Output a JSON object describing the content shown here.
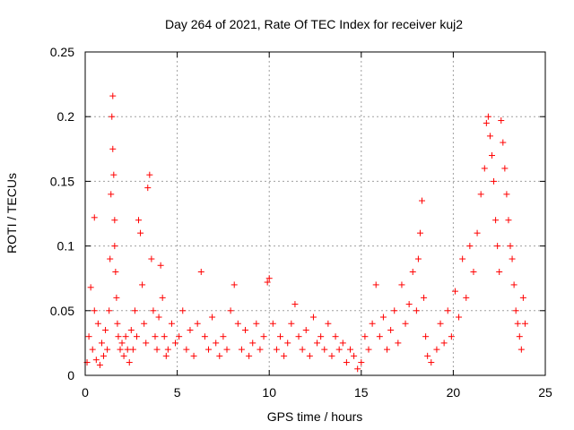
{
  "chart_data": {
    "type": "scatter",
    "title": "Day 264 of 2021, Rate Of TEC Index for receiver kuj2",
    "xlabel": "GPS time / hours",
    "ylabel": "ROTI / TECUs",
    "xlim": [
      0,
      25
    ],
    "ylim": [
      0,
      0.25
    ],
    "xticks": [
      0,
      5,
      10,
      15,
      20,
      25
    ],
    "yticks": [
      0,
      0.05,
      0.1,
      0.15,
      0.2,
      0.25
    ],
    "xtick_labels": [
      "0",
      "5",
      "10",
      "15",
      "20",
      "25"
    ],
    "ytick_labels": [
      "0",
      "0.05",
      "0.1",
      "0.15",
      "0.2",
      "0.25"
    ],
    "grid": true,
    "marker": "+",
    "series_color": "#ff0000",
    "series": [
      {
        "name": "ROTI",
        "points": [
          [
            0.1,
            0.01
          ],
          [
            0.2,
            0.03
          ],
          [
            0.3,
            0.068
          ],
          [
            0.4,
            0.02
          ],
          [
            0.5,
            0.05
          ],
          [
            0.6,
            0.012
          ],
          [
            0.7,
            0.04
          ],
          [
            0.8,
            0.008
          ],
          [
            0.5,
            0.122
          ],
          [
            0.9,
            0.025
          ],
          [
            1.0,
            0.015
          ],
          [
            1.1,
            0.035
          ],
          [
            1.2,
            0.02
          ],
          [
            1.3,
            0.05
          ],
          [
            1.35,
            0.09
          ],
          [
            1.4,
            0.14
          ],
          [
            1.45,
            0.2
          ],
          [
            1.5,
            0.216
          ],
          [
            1.5,
            0.175
          ],
          [
            1.55,
            0.155
          ],
          [
            1.6,
            0.12
          ],
          [
            1.6,
            0.1
          ],
          [
            1.65,
            0.08
          ],
          [
            1.7,
            0.06
          ],
          [
            1.75,
            0.04
          ],
          [
            1.8,
            0.03
          ],
          [
            1.9,
            0.02
          ],
          [
            2.0,
            0.025
          ],
          [
            2.1,
            0.015
          ],
          [
            2.2,
            0.03
          ],
          [
            2.3,
            0.02
          ],
          [
            2.4,
            0.01
          ],
          [
            2.5,
            0.035
          ],
          [
            2.6,
            0.02
          ],
          [
            2.7,
            0.05
          ],
          [
            2.8,
            0.03
          ],
          [
            2.9,
            0.12
          ],
          [
            3.0,
            0.11
          ],
          [
            3.1,
            0.07
          ],
          [
            3.2,
            0.04
          ],
          [
            3.3,
            0.025
          ],
          [
            3.4,
            0.145
          ],
          [
            3.5,
            0.155
          ],
          [
            3.6,
            0.09
          ],
          [
            3.7,
            0.05
          ],
          [
            3.8,
            0.03
          ],
          [
            3.9,
            0.02
          ],
          [
            4.0,
            0.045
          ],
          [
            4.1,
            0.085
          ],
          [
            4.2,
            0.06
          ],
          [
            4.3,
            0.03
          ],
          [
            4.4,
            0.015
          ],
          [
            4.5,
            0.02
          ],
          [
            4.7,
            0.04
          ],
          [
            4.9,
            0.025
          ],
          [
            5.1,
            0.03
          ],
          [
            5.3,
            0.05
          ],
          [
            5.5,
            0.02
          ],
          [
            5.7,
            0.035
          ],
          [
            5.9,
            0.015
          ],
          [
            6.1,
            0.04
          ],
          [
            6.3,
            0.08
          ],
          [
            6.5,
            0.03
          ],
          [
            6.7,
            0.02
          ],
          [
            6.9,
            0.045
          ],
          [
            7.1,
            0.025
          ],
          [
            7.3,
            0.015
          ],
          [
            7.5,
            0.03
          ],
          [
            7.7,
            0.02
          ],
          [
            7.9,
            0.05
          ],
          [
            8.1,
            0.07
          ],
          [
            8.3,
            0.04
          ],
          [
            8.5,
            0.02
          ],
          [
            8.7,
            0.035
          ],
          [
            8.9,
            0.015
          ],
          [
            9.1,
            0.025
          ],
          [
            9.3,
            0.04
          ],
          [
            9.5,
            0.02
          ],
          [
            9.7,
            0.03
          ],
          [
            9.9,
            0.072
          ],
          [
            10.0,
            0.075
          ],
          [
            10.2,
            0.04
          ],
          [
            10.4,
            0.02
          ],
          [
            10.6,
            0.03
          ],
          [
            10.8,
            0.015
          ],
          [
            11.0,
            0.025
          ],
          [
            11.2,
            0.04
          ],
          [
            11.4,
            0.055
          ],
          [
            11.6,
            0.03
          ],
          [
            11.8,
            0.02
          ],
          [
            12.0,
            0.035
          ],
          [
            12.2,
            0.015
          ],
          [
            12.4,
            0.045
          ],
          [
            12.6,
            0.025
          ],
          [
            12.8,
            0.03
          ],
          [
            13.0,
            0.02
          ],
          [
            13.2,
            0.04
          ],
          [
            13.4,
            0.015
          ],
          [
            13.6,
            0.03
          ],
          [
            13.8,
            0.02
          ],
          [
            14.0,
            0.025
          ],
          [
            14.2,
            0.01
          ],
          [
            14.4,
            0.02
          ],
          [
            14.6,
            0.015
          ],
          [
            14.8,
            0.005
          ],
          [
            15.0,
            0.01
          ],
          [
            15.2,
            0.03
          ],
          [
            15.4,
            0.02
          ],
          [
            15.6,
            0.04
          ],
          [
            15.8,
            0.07
          ],
          [
            16.0,
            0.03
          ],
          [
            16.2,
            0.045
          ],
          [
            16.4,
            0.02
          ],
          [
            16.6,
            0.035
          ],
          [
            16.8,
            0.05
          ],
          [
            17.0,
            0.025
          ],
          [
            17.2,
            0.07
          ],
          [
            17.4,
            0.04
          ],
          [
            17.6,
            0.055
          ],
          [
            17.8,
            0.08
          ],
          [
            18.0,
            0.05
          ],
          [
            18.1,
            0.09
          ],
          [
            18.2,
            0.11
          ],
          [
            18.3,
            0.135
          ],
          [
            18.4,
            0.06
          ],
          [
            18.5,
            0.03
          ],
          [
            18.6,
            0.015
          ],
          [
            18.8,
            0.01
          ],
          [
            19.1,
            0.02
          ],
          [
            19.3,
            0.04
          ],
          [
            19.5,
            0.025
          ],
          [
            19.7,
            0.05
          ],
          [
            19.9,
            0.03
          ],
          [
            20.1,
            0.065
          ],
          [
            20.3,
            0.045
          ],
          [
            20.5,
            0.09
          ],
          [
            20.7,
            0.06
          ],
          [
            20.9,
            0.1
          ],
          [
            21.1,
            0.08
          ],
          [
            21.3,
            0.11
          ],
          [
            21.5,
            0.14
          ],
          [
            21.7,
            0.16
          ],
          [
            21.8,
            0.195
          ],
          [
            21.9,
            0.2
          ],
          [
            22.0,
            0.185
          ],
          [
            22.1,
            0.17
          ],
          [
            22.2,
            0.15
          ],
          [
            22.3,
            0.12
          ],
          [
            22.4,
            0.1
          ],
          [
            22.5,
            0.08
          ],
          [
            22.6,
            0.197
          ],
          [
            22.7,
            0.18
          ],
          [
            22.8,
            0.16
          ],
          [
            22.9,
            0.14
          ],
          [
            23.0,
            0.12
          ],
          [
            23.1,
            0.1
          ],
          [
            23.2,
            0.09
          ],
          [
            23.3,
            0.07
          ],
          [
            23.4,
            0.05
          ],
          [
            23.5,
            0.04
          ],
          [
            23.6,
            0.03
          ],
          [
            23.7,
            0.02
          ],
          [
            23.8,
            0.06
          ],
          [
            23.9,
            0.04
          ]
        ]
      }
    ]
  }
}
